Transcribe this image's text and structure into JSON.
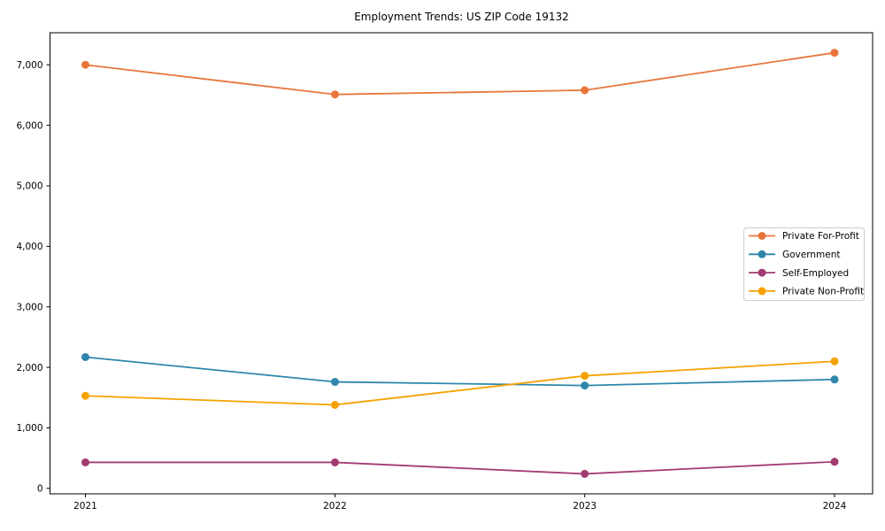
{
  "chart_data": {
    "type": "line",
    "title": "Employment Trends: US ZIP Code 19132",
    "x": [
      2021,
      2022,
      2023,
      2024
    ],
    "x_tick_labels": [
      "2021",
      "2022",
      "2023",
      "2024"
    ],
    "y_ticks": [
      0,
      1000,
      2000,
      3000,
      4000,
      5000,
      6000,
      7000
    ],
    "y_tick_labels": [
      "0",
      "1,000",
      "2,000",
      "3,000",
      "4,000",
      "5,000",
      "6,000",
      "7,000"
    ],
    "ylim": [
      -90,
      7530
    ],
    "grid": false,
    "legend_position": "center right",
    "series": [
      {
        "name": "Private For-Profit",
        "color": "#E8763C",
        "values": [
          7000,
          6510,
          6580,
          7200
        ]
      },
      {
        "name": "Government",
        "color": "#2E86AB",
        "values": [
          2170,
          1760,
          1700,
          1800
        ]
      },
      {
        "name": "Self-Employed",
        "color": "#A23B72",
        "values": [
          430,
          430,
          240,
          440
        ]
      },
      {
        "name": "Private Non-Profit",
        "color": "#F5A201",
        "values": [
          1530,
          1380,
          1860,
          2100
        ]
      }
    ]
  }
}
